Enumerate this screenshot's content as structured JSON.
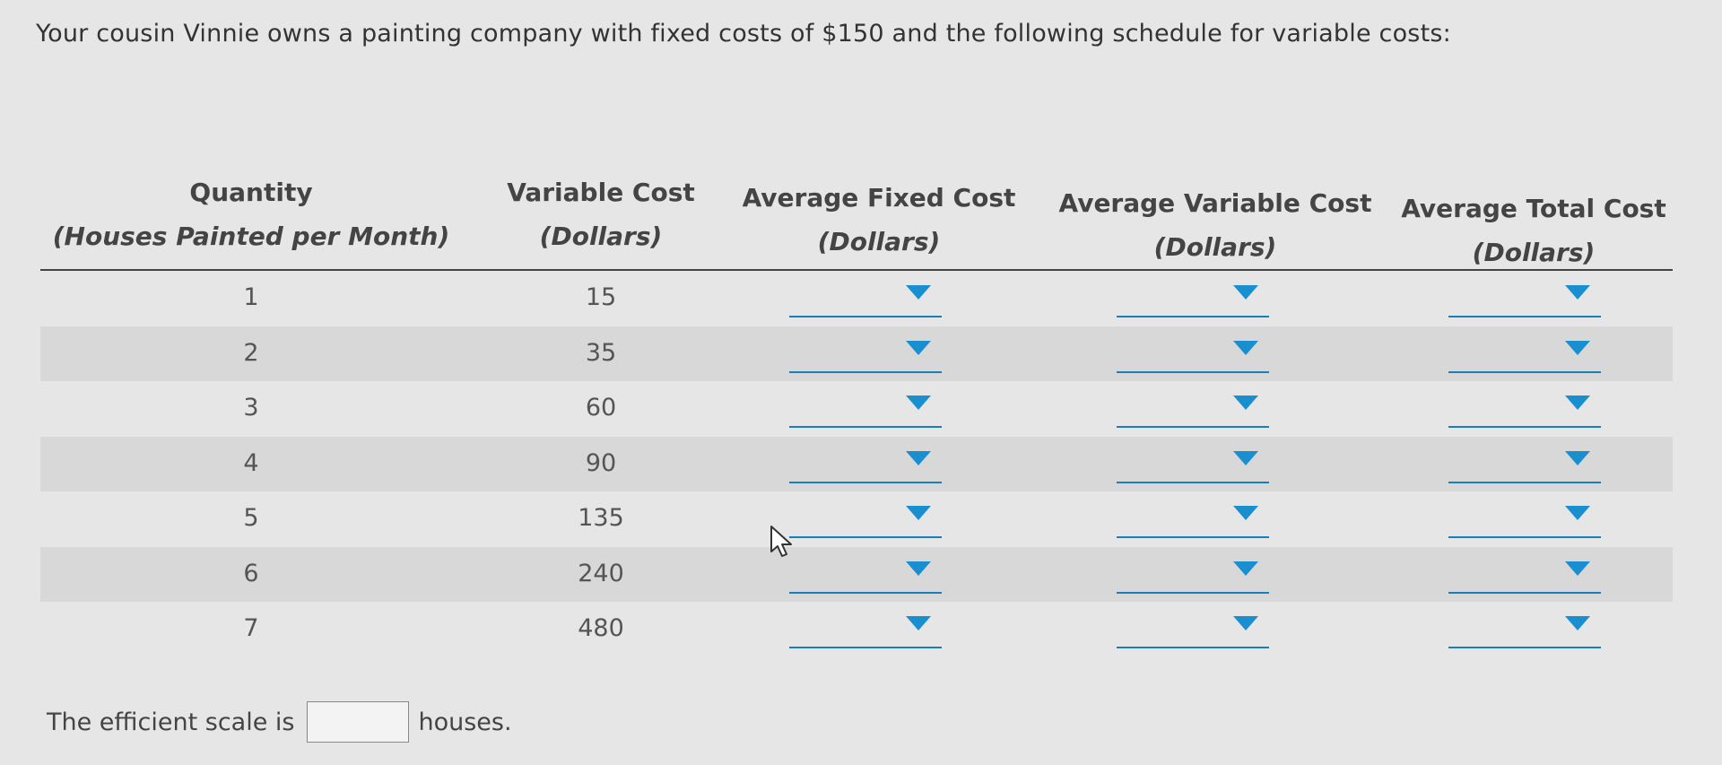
{
  "prompt": "Your cousin Vinnie owns a painting company with fixed costs of $150 and the following schedule for variable costs:",
  "table": {
    "headers": [
      {
        "title": "Quantity",
        "sub": "(Houses Painted per Month)"
      },
      {
        "title": "Variable Cost",
        "sub": "(Dollars)"
      },
      {
        "title": "Average Fixed Cost",
        "sub": "(Dollars)"
      },
      {
        "title": "Average Variable Cost",
        "sub": "(Dollars)"
      },
      {
        "title": "Average Total Cost",
        "sub": "(Dollars)"
      }
    ],
    "rows": [
      {
        "quantity": "1",
        "variable_cost": "15"
      },
      {
        "quantity": "2",
        "variable_cost": "35"
      },
      {
        "quantity": "3",
        "variable_cost": "60"
      },
      {
        "quantity": "4",
        "variable_cost": "90"
      },
      {
        "quantity": "5",
        "variable_cost": "135"
      },
      {
        "quantity": "6",
        "variable_cost": "240"
      },
      {
        "quantity": "7",
        "variable_cost": "480"
      }
    ]
  },
  "footer": {
    "before": "The efficient scale is",
    "value": "",
    "after": "houses."
  },
  "colors": {
    "dropdown_accent": "#1a8fd0",
    "row_shade": "#d8d8d8",
    "background": "#e6e6e6"
  }
}
